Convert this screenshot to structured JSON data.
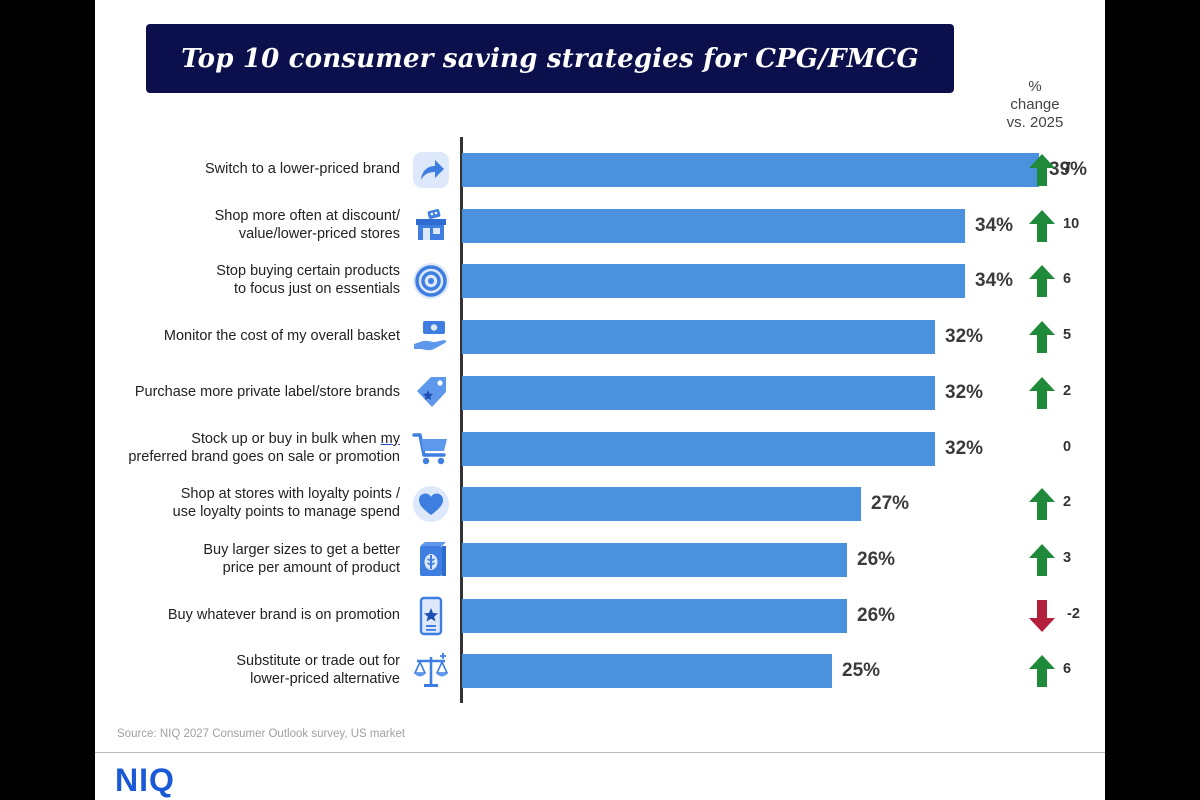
{
  "title": "Top 10 consumer saving strategies for CPG/FMCG",
  "change_header": [
    "%",
    "change",
    "vs. 2025"
  ],
  "source": "Source: NIQ 2027 Consumer Outlook survey, US market",
  "logo": "NIQ",
  "colors": {
    "bar": "#4a92de",
    "up": "#1e8a3a",
    "down": "#b3203d",
    "title_bg": "#0b0f4c"
  },
  "chart_data": {
    "type": "bar",
    "orientation": "horizontal",
    "title": "Top 10 consumer saving strategies for CPG/FMCG",
    "xlim": [
      0,
      39
    ],
    "categories": [
      [
        "Switch to a lower-priced brand"
      ],
      [
        "Shop more often at discount/",
        "value/lower-priced stores"
      ],
      [
        "Stop buying certain products",
        "to focus just on essentials"
      ],
      [
        "Monitor the cost of my overall basket"
      ],
      [
        "Purchase more private label/store brands"
      ],
      [
        "Stock up or buy in bulk when my",
        "preferred brand goes on sale or promotion"
      ],
      [
        "Shop at stores with loyalty points /",
        "use loyalty points to manage spend"
      ],
      [
        "Buy larger sizes to get a better",
        "price per amount of product"
      ],
      [
        "Buy whatever brand is on promotion"
      ],
      [
        "Substitute or trade out for",
        "lower-priced alternative"
      ]
    ],
    "values": [
      39,
      34,
      34,
      32,
      32,
      32,
      27,
      26,
      26,
      25
    ],
    "value_labels": [
      "39%",
      "34%",
      "34%",
      "32%",
      "32%",
      "32%",
      "27%",
      "26%",
      "26%",
      "25%"
    ],
    "change_vs_2025": [
      7,
      10,
      6,
      5,
      2,
      0,
      2,
      3,
      -2,
      6
    ],
    "change_labels": [
      "7",
      "10",
      "6",
      "5",
      "2",
      "0",
      "2",
      "3",
      "-2",
      "6"
    ],
    "icons": [
      "redirect-arrow-icon",
      "storefront-icon",
      "target-icon",
      "hand-money-icon",
      "price-tag-icon",
      "shopping-cart-icon",
      "heart-icon",
      "cereal-box-icon",
      "phone-star-icon",
      "balance-scale-icon"
    ]
  }
}
